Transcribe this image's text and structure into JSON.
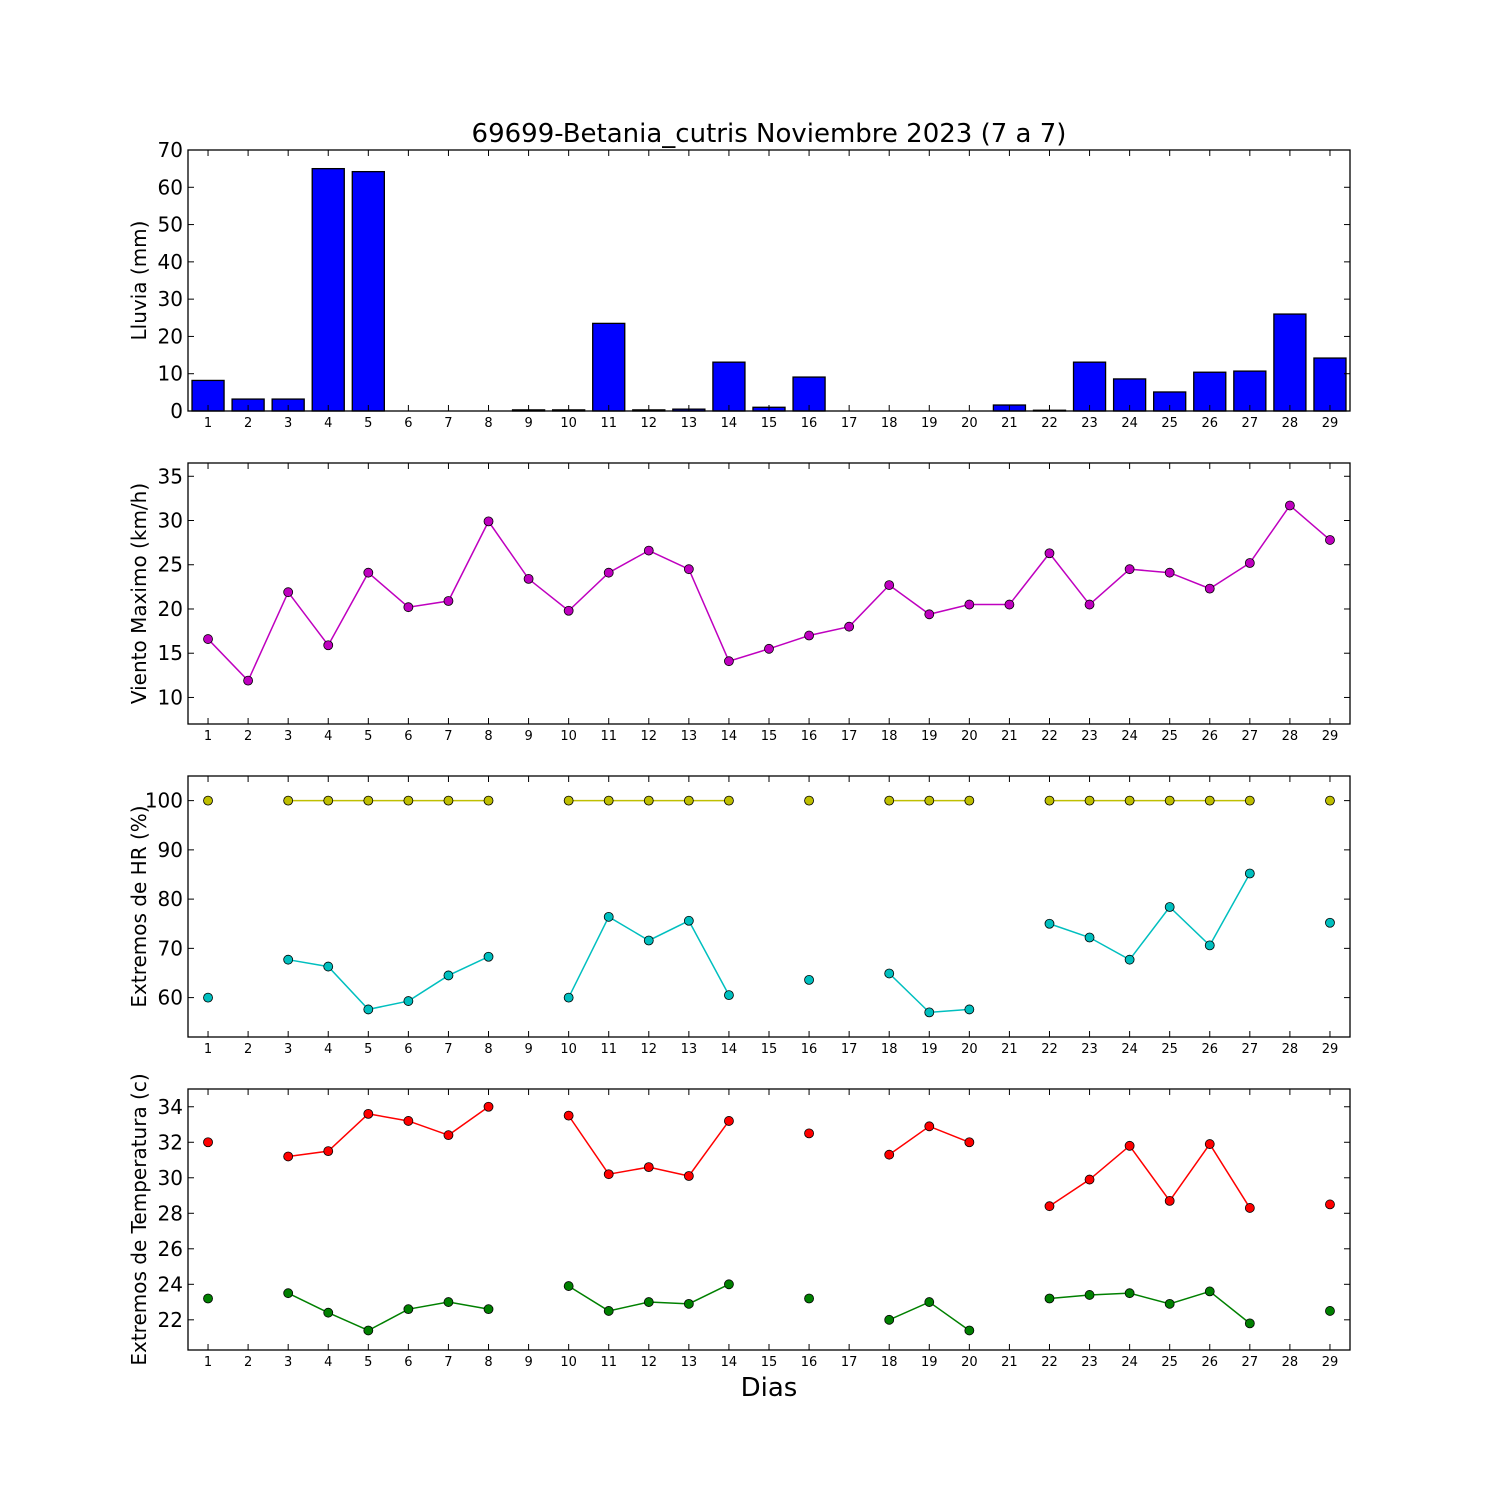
{
  "chart_data": {
    "type": "multi-panel",
    "title": "69699-Betania_cutris Noviembre 2023  (7 a 7)",
    "xlabel": "Dias",
    "days": [
      1,
      2,
      3,
      4,
      5,
      6,
      7,
      8,
      9,
      10,
      11,
      12,
      13,
      14,
      15,
      16,
      17,
      18,
      19,
      20,
      21,
      22,
      23,
      24,
      25,
      26,
      27,
      28,
      29
    ],
    "colors": {
      "lluvia": "#0000ff",
      "viento": "#bf00bf",
      "hr_max": "#bfbf00",
      "hr_min": "#00bfbf",
      "temp_max": "#ff0000",
      "temp_min": "#008000"
    },
    "panels": [
      {
        "id": "lluvia",
        "type": "bar",
        "ylabel": "Lluvia (mm)",
        "ylim": [
          0,
          70
        ],
        "yticks": [
          0,
          10,
          20,
          30,
          40,
          50,
          60,
          70
        ],
        "series": [
          {
            "color_key": "lluvia",
            "values": [
              8.2,
              3.2,
              3.2,
              65.0,
              64.2,
              0,
              0,
              0,
              0.3,
              0.3,
              23.5,
              0.3,
              0.5,
              13.1,
              1.0,
              9.1,
              0,
              0,
              0,
              0,
              1.6,
              0.2,
              13.1,
              8.6,
              5.1,
              10.4,
              10.7,
              26.0,
              14.2
            ]
          }
        ]
      },
      {
        "id": "viento",
        "type": "line",
        "ylabel": "Viento Maximo (km/h)",
        "ylim": [
          7,
          36.5
        ],
        "yticks": [
          10,
          15,
          20,
          25,
          30,
          35
        ],
        "series": [
          {
            "color_key": "viento",
            "values": [
              16.6,
              11.9,
              21.9,
              15.9,
              24.1,
              20.2,
              20.9,
              29.9,
              23.4,
              19.8,
              24.1,
              26.6,
              24.5,
              14.1,
              15.5,
              17.0,
              18.0,
              22.7,
              19.4,
              20.5,
              20.5,
              26.3,
              20.5,
              24.5,
              24.1,
              22.3,
              25.2,
              31.7,
              27.8
            ]
          }
        ]
      },
      {
        "id": "hr",
        "type": "line",
        "ylabel": "Extremos de HR (%)",
        "ylim": [
          52,
          105
        ],
        "yticks": [
          60,
          70,
          80,
          90,
          100
        ],
        "series": [
          {
            "color_key": "hr_max",
            "values": [
              100,
              null,
              100,
              100,
              100,
              100,
              100,
              100,
              null,
              100,
              100,
              100,
              100,
              100,
              null,
              100,
              null,
              100,
              100,
              100,
              null,
              100,
              100,
              100,
              100,
              100,
              100,
              null,
              100
            ]
          },
          {
            "color_key": "hr_min",
            "values": [
              60.0,
              null,
              67.7,
              66.3,
              57.6,
              59.3,
              64.5,
              68.3,
              null,
              60.0,
              76.4,
              71.6,
              75.6,
              60.5,
              null,
              63.6,
              null,
              64.9,
              57.0,
              57.6,
              null,
              75.0,
              72.2,
              67.7,
              78.4,
              70.6,
              85.2,
              null,
              75.2
            ]
          }
        ]
      },
      {
        "id": "temp",
        "type": "line",
        "ylabel": "Extremos de Temperatura (c)",
        "ylim": [
          20.3,
          35.0
        ],
        "yticks": [
          22,
          24,
          26,
          28,
          30,
          32,
          34
        ],
        "series": [
          {
            "color_key": "temp_max",
            "values": [
              32.0,
              null,
              31.2,
              31.5,
              33.6,
              33.2,
              32.4,
              34.0,
              null,
              33.5,
              30.2,
              30.6,
              30.1,
              33.2,
              null,
              32.5,
              null,
              31.3,
              32.9,
              32.0,
              null,
              28.4,
              29.9,
              31.8,
              28.7,
              31.9,
              28.3,
              null,
              28.5
            ]
          },
          {
            "color_key": "temp_min",
            "values": [
              23.2,
              null,
              23.5,
              22.4,
              21.4,
              22.6,
              23.0,
              22.6,
              null,
              23.9,
              22.5,
              23.0,
              22.9,
              24.0,
              null,
              23.2,
              null,
              22.0,
              23.0,
              21.4,
              null,
              23.2,
              23.4,
              23.5,
              22.9,
              23.6,
              21.8,
              null,
              22.5
            ]
          }
        ]
      }
    ]
  }
}
